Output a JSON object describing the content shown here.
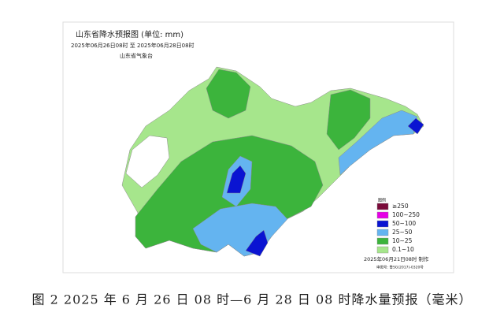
{
  "header": {
    "title": "山东省降水预报图 (单位: mm)",
    "period": "2025年06月26日08时 至 2025年06月28日08时",
    "issuer": "山东省气象台"
  },
  "legend": {
    "title": "图例",
    "items": [
      {
        "label": "≥250",
        "color": "#7a0a3a"
      },
      {
        "label": "100~250",
        "color": "#e600e6"
      },
      {
        "label": "50~100",
        "color": "#0a14d2"
      },
      {
        "label": "25~50",
        "color": "#64b4f0"
      },
      {
        "label": "10~25",
        "color": "#3cb43c"
      },
      {
        "label": "0.1~10",
        "color": "#a6e68c"
      }
    ]
  },
  "footer": {
    "made": "2025年06月21日08时 制作",
    "approval": "审图号: 鲁SG(2017)-0320号"
  },
  "caption": "图 2 2025 年 6 月 26 日 08 时—6 月 28 日 08 时降水量预报（毫米）"
}
